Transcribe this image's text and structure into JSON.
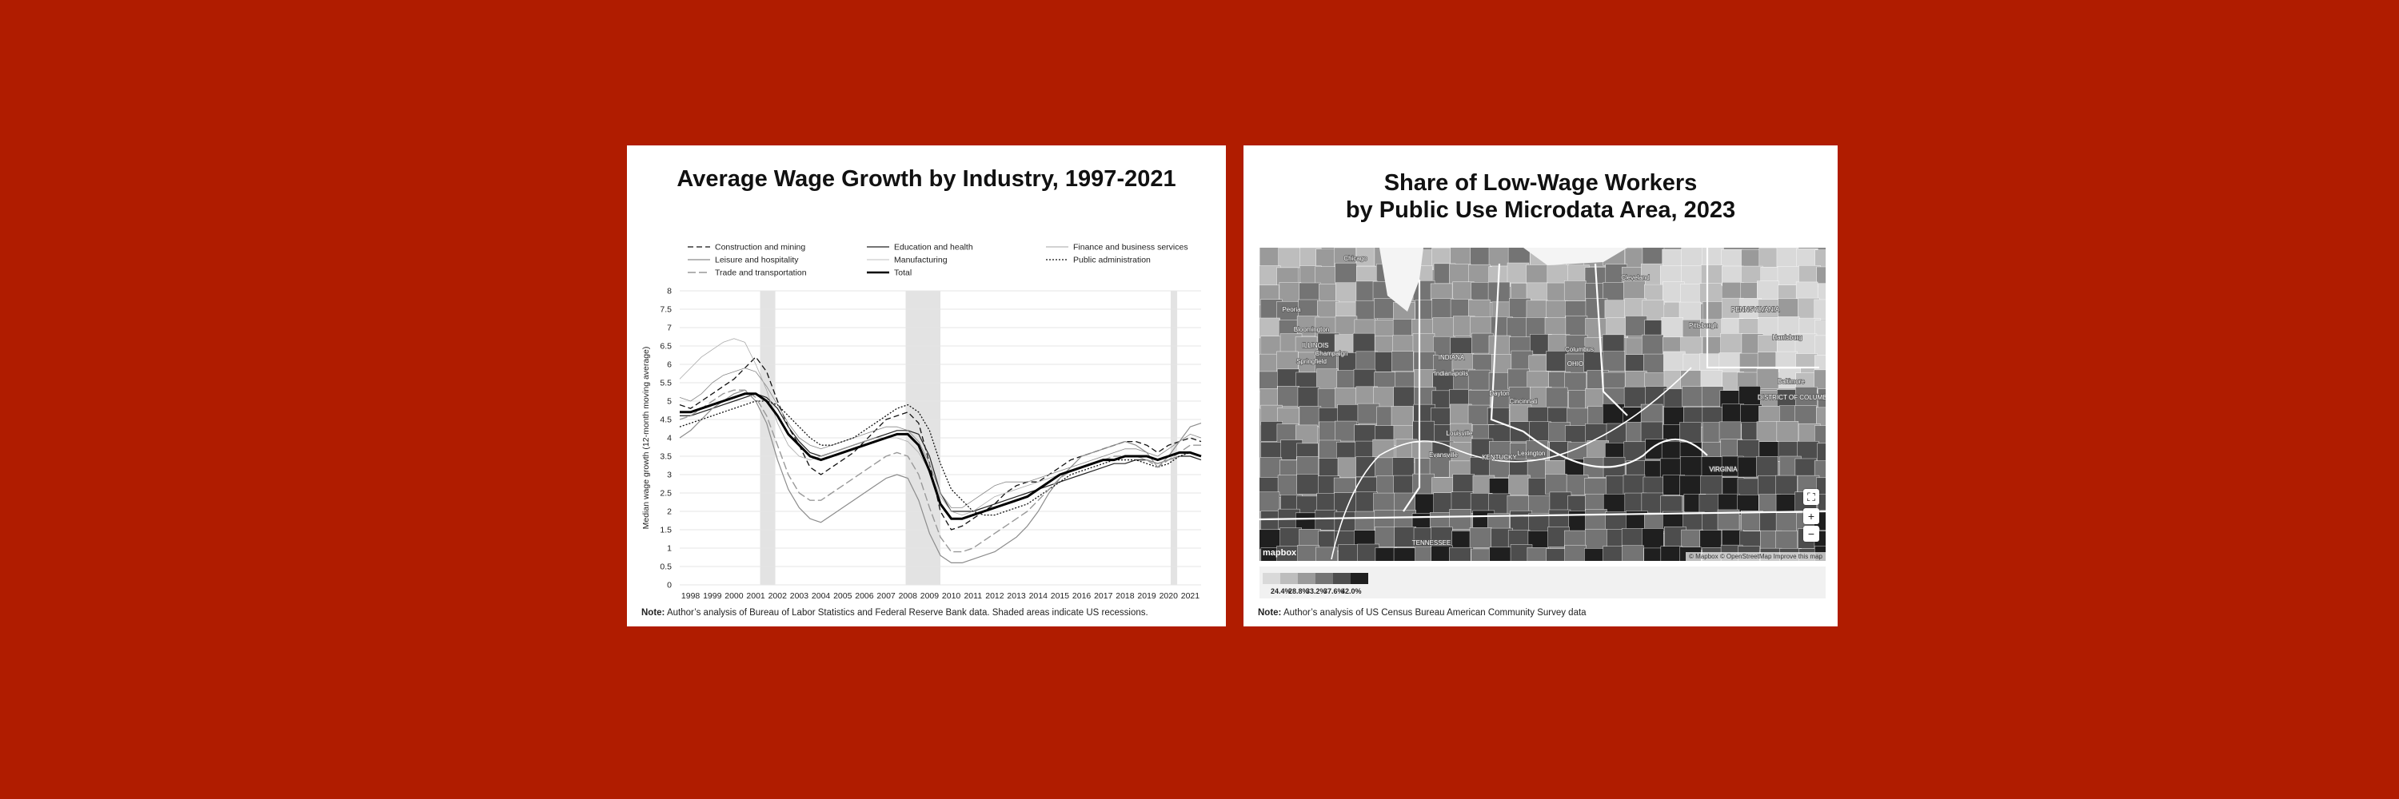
{
  "left": {
    "title": "Average Wage Growth by Industry, 1997-2021",
    "note_label": "Note:",
    "note_text": "Author’s analysis of Bureau of Labor Statistics and Federal Reserve Bank data. Shaded areas indicate US recessions."
  },
  "right": {
    "title_line1": "Share of Low-Wage Workers",
    "title_line2": "by Public Use Microdata Area, 2023",
    "note_label": "Note:",
    "note_text": "Author’s analysis of US Census Bureau American Community Survey data",
    "map_attribution": "© Mapbox © OpenStreetMap  Improve this map",
    "map_logo": "mapbox",
    "map_place_labels": [
      "Chicago",
      "Cleveland",
      "Pittsburgh",
      "PENNSYLVANIA",
      "Harrisburg",
      "Peoria",
      "Bloomington",
      "Champaign",
      "Springfield",
      "ILLINOIS",
      "INDIANA",
      "Indianapolis",
      "Dayton",
      "Columbus",
      "OHIO",
      "Cincinnati",
      "Louisville",
      "Lexington",
      "KENTUCKY",
      "Evansville",
      "Baltimore",
      "DISTRICT OF COLUMBIA",
      "VIRGINIA",
      "TENNESSEE"
    ],
    "controls": {
      "fullscreen": "⛶",
      "zoom_in": "+",
      "zoom_out": "−"
    },
    "legend": {
      "colors": [
        "#d9d9d9",
        "#bdbdbd",
        "#9a9a9a",
        "#747474",
        "#4d4d4d",
        "#1f1f1f"
      ],
      "labels": [
        "24.4%",
        "28.8%",
        "33.2%",
        "37.6%",
        "42.0%"
      ]
    }
  },
  "chart_data": {
    "type": "line",
    "title": "Average Wage Growth by Industry, 1997-2021",
    "ylabel": "Median wage growth (12-month moving average)",
    "xlabel": "",
    "x_ticks": [
      "1998",
      "1999",
      "2000",
      "2001",
      "2002",
      "2003",
      "2004",
      "2005",
      "2006",
      "2007",
      "2008",
      "2009",
      "2010",
      "2011",
      "2012",
      "2013",
      "2014",
      "2015",
      "2016",
      "2017",
      "2018",
      "2019",
      "2020",
      "2021"
    ],
    "y_ticks": [
      "0",
      "0.5",
      "1",
      "1.5",
      "2",
      "2.5",
      "3",
      "3.5",
      "4",
      "4.5",
      "5",
      "5.5",
      "6",
      "6.5",
      "7",
      "7.5",
      "8"
    ],
    "ylim": [
      0,
      8
    ],
    "xlim": [
      1997.5,
      2021.5
    ],
    "grid": true,
    "legend_position": "top",
    "recessions": [
      [
        2001.2,
        2001.9
      ],
      [
        2007.9,
        2009.5
      ],
      [
        2020.1,
        2020.4
      ]
    ],
    "x": [
      1997.5,
      1998,
      1998.5,
      1999,
      1999.5,
      2000,
      2000.5,
      2001,
      2001.5,
      2002,
      2002.5,
      2003,
      2003.5,
      2004,
      2004.5,
      2005,
      2005.5,
      2006,
      2006.5,
      2007,
      2007.5,
      2008,
      2008.5,
      2009,
      2009.5,
      2010,
      2010.5,
      2011,
      2011.5,
      2012,
      2012.5,
      2013,
      2013.5,
      2014,
      2014.5,
      2015,
      2015.5,
      2016,
      2016.5,
      2017,
      2017.5,
      2018,
      2018.5,
      2019,
      2019.5,
      2020,
      2020.5,
      2021,
      2021.5
    ],
    "series": [
      {
        "name": "Construction and mining",
        "style": "dashed",
        "width": 1.3,
        "color": "#111111",
        "values": [
          4.9,
          4.8,
          5.0,
          5.2,
          5.4,
          5.6,
          5.9,
          6.2,
          5.8,
          5.0,
          4.3,
          3.8,
          3.2,
          3.0,
          3.2,
          3.4,
          3.6,
          3.9,
          4.2,
          4.5,
          4.6,
          4.7,
          4.4,
          3.3,
          2.0,
          1.5,
          1.6,
          1.8,
          2.0,
          2.2,
          2.5,
          2.7,
          2.8,
          2.8,
          3.0,
          3.2,
          3.4,
          3.5,
          3.6,
          3.7,
          3.8,
          3.9,
          3.9,
          3.8,
          3.6,
          3.8,
          3.9,
          4.0,
          3.9
        ]
      },
      {
        "name": "Education and health",
        "style": "solid",
        "width": 1.2,
        "color": "#222222",
        "values": [
          4.6,
          4.6,
          4.7,
          4.8,
          4.9,
          5.0,
          5.1,
          5.2,
          5.1,
          4.8,
          4.3,
          3.9,
          3.6,
          3.5,
          3.6,
          3.7,
          3.8,
          3.9,
          4.0,
          4.1,
          4.2,
          4.2,
          4.1,
          3.5,
          2.5,
          2.0,
          2.0,
          2.0,
          2.1,
          2.2,
          2.3,
          2.4,
          2.5,
          2.6,
          2.7,
          2.8,
          2.9,
          3.0,
          3.1,
          3.2,
          3.3,
          3.3,
          3.4,
          3.4,
          3.3,
          3.4,
          3.5,
          3.5,
          3.4
        ]
      },
      {
        "name": "Finance and business services",
        "style": "solid",
        "width": 0.8,
        "color": "#888888",
        "values": [
          5.1,
          5.0,
          5.2,
          5.5,
          5.7,
          5.8,
          5.9,
          5.8,
          5.4,
          4.9,
          4.4,
          4.0,
          3.8,
          3.7,
          3.8,
          3.9,
          4.0,
          4.1,
          4.2,
          4.3,
          4.3,
          4.2,
          3.9,
          3.3,
          2.5,
          2.1,
          2.1,
          2.3,
          2.5,
          2.7,
          2.8,
          2.8,
          2.8,
          2.9,
          3.0,
          3.1,
          3.2,
          3.3,
          3.4,
          3.5,
          3.6,
          3.7,
          3.7,
          3.6,
          3.5,
          3.7,
          3.9,
          4.1,
          4.0
        ]
      },
      {
        "name": "Leisure and hospitality",
        "style": "solid",
        "width": 1.2,
        "color": "#8c8c8c",
        "values": [
          4.0,
          4.2,
          4.5,
          4.8,
          5.0,
          5.2,
          5.3,
          5.0,
          4.4,
          3.4,
          2.6,
          2.1,
          1.8,
          1.7,
          1.9,
          2.1,
          2.3,
          2.5,
          2.7,
          2.9,
          3.0,
          2.9,
          2.3,
          1.4,
          0.8,
          0.6,
          0.6,
          0.7,
          0.8,
          0.9,
          1.1,
          1.3,
          1.6,
          2.0,
          2.5,
          2.9,
          3.2,
          3.5,
          3.6,
          3.7,
          3.8,
          3.9,
          3.8,
          3.6,
          3.2,
          3.5,
          3.9,
          4.3,
          4.4
        ]
      },
      {
        "name": "Manufacturing",
        "style": "solid",
        "width": 0.8,
        "color": "#aaaaaa",
        "values": [
          5.6,
          5.9,
          6.2,
          6.4,
          6.6,
          6.7,
          6.6,
          6.0,
          5.3,
          4.4,
          3.8,
          3.5,
          3.4,
          3.5,
          3.6,
          3.7,
          3.8,
          3.9,
          4.0,
          4.0,
          4.0,
          3.9,
          3.6,
          3.1,
          2.4,
          2.0,
          1.9,
          2.0,
          2.2,
          2.4,
          2.5,
          2.6,
          2.7,
          2.8,
          2.9,
          3.0,
          3.1,
          3.2,
          3.3,
          3.4,
          3.4,
          3.5,
          3.5,
          3.4,
          3.3,
          3.4,
          3.5,
          3.6,
          3.5
        ]
      },
      {
        "name": "Public administration",
        "style": "dotted",
        "width": 1.3,
        "color": "#111111",
        "values": [
          4.3,
          4.4,
          4.5,
          4.6,
          4.7,
          4.8,
          4.9,
          5.0,
          5.0,
          4.9,
          4.6,
          4.3,
          4.0,
          3.8,
          3.8,
          3.9,
          4.0,
          4.2,
          4.4,
          4.6,
          4.8,
          4.9,
          4.7,
          4.2,
          3.3,
          2.6,
          2.3,
          2.0,
          1.9,
          1.9,
          2.0,
          2.1,
          2.2,
          2.4,
          2.6,
          2.8,
          3.0,
          3.1,
          3.2,
          3.3,
          3.4,
          3.4,
          3.4,
          3.3,
          3.2,
          3.3,
          3.5,
          3.6,
          3.5
        ]
      },
      {
        "name": "Trade and transportation",
        "style": "longdash",
        "width": 1.4,
        "color": "#999999",
        "values": [
          4.5,
          4.6,
          4.8,
          5.0,
          5.2,
          5.3,
          5.3,
          5.1,
          4.6,
          3.8,
          3.0,
          2.5,
          2.3,
          2.3,
          2.5,
          2.7,
          2.9,
          3.1,
          3.3,
          3.5,
          3.6,
          3.5,
          3.0,
          2.1,
          1.3,
          0.9,
          0.9,
          1.0,
          1.2,
          1.4,
          1.6,
          1.8,
          2.0,
          2.3,
          2.6,
          2.9,
          3.1,
          3.2,
          3.3,
          3.4,
          3.5,
          3.5,
          3.5,
          3.4,
          3.2,
          3.4,
          3.6,
          3.8,
          3.8
        ]
      },
      {
        "name": "Total",
        "style": "solid",
        "width": 3.0,
        "color": "#000000",
        "values": [
          4.7,
          4.7,
          4.8,
          4.9,
          5.0,
          5.1,
          5.2,
          5.2,
          5.0,
          4.6,
          4.1,
          3.8,
          3.5,
          3.4,
          3.5,
          3.6,
          3.7,
          3.8,
          3.9,
          4.0,
          4.1,
          4.1,
          3.8,
          3.1,
          2.2,
          1.8,
          1.8,
          1.9,
          2.0,
          2.1,
          2.2,
          2.3,
          2.4,
          2.6,
          2.8,
          3.0,
          3.1,
          3.2,
          3.3,
          3.4,
          3.4,
          3.5,
          3.5,
          3.5,
          3.4,
          3.5,
          3.6,
          3.6,
          3.5
        ]
      }
    ]
  }
}
